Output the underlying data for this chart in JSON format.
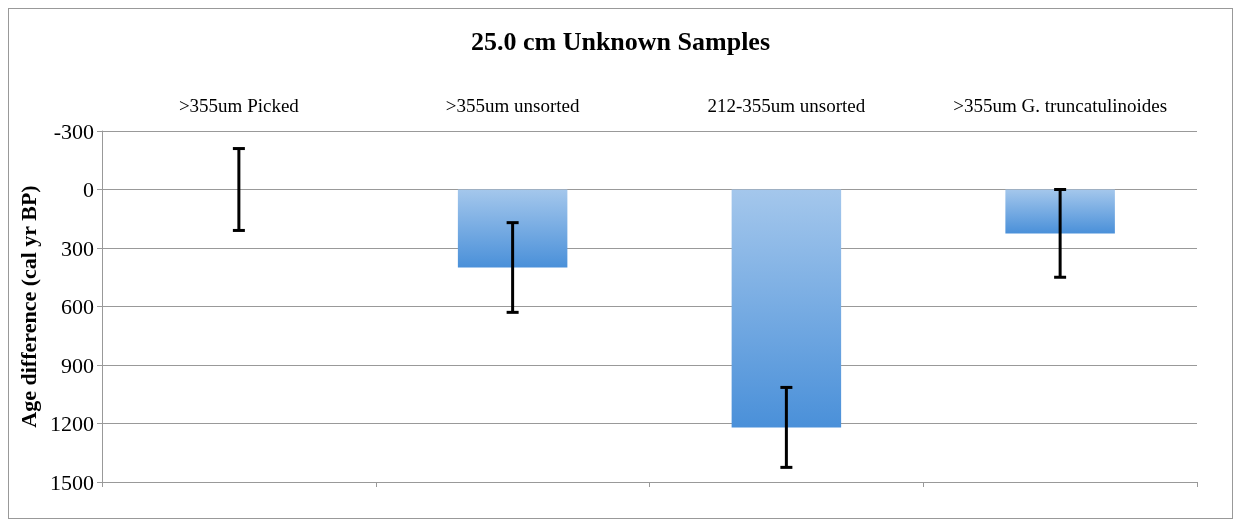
{
  "chart_data": {
    "type": "bar",
    "title": "25.0 cm Unknown Samples",
    "ylabel": "Age difference (cal yr BP)",
    "categories": [
      ">355um Picked",
      ">355um unsorted",
      "212-355um unsorted",
      ">355um G. truncatulinoides"
    ],
    "values": [
      0,
      400,
      1220,
      225
    ],
    "errors": [
      210,
      230,
      205,
      225
    ],
    "color": "#4a90d9",
    "ylim": [
      1500,
      -300
    ],
    "yticks": [
      -300,
      0,
      300,
      600,
      900,
      1200,
      1500
    ],
    "grid": "y"
  }
}
